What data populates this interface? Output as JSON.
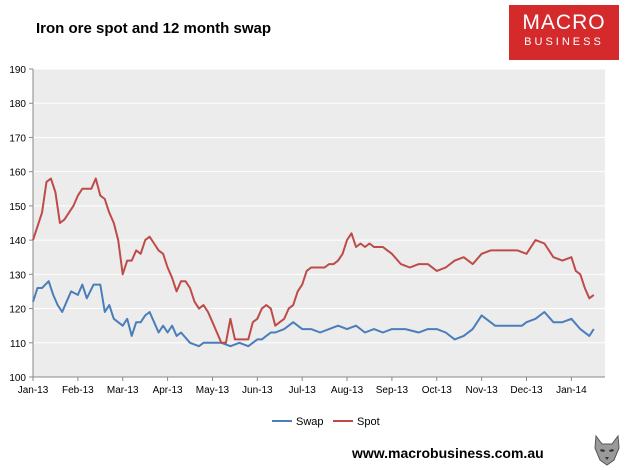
{
  "header": {
    "title": "Iron ore spot and 12 month swap"
  },
  "logo": {
    "line1": "MACRO",
    "line2": "BUSINESS",
    "color": "#d42a2c"
  },
  "footer": {
    "url": "www.macrobusiness.com.au"
  },
  "colors": {
    "swap": "#4a7ebb",
    "spot": "#be4b48",
    "plot_bg": "#ececec"
  },
  "chart_data": {
    "type": "line",
    "title": "Iron ore spot and 12 month swap",
    "xlabel": "",
    "ylabel": "",
    "ylim": [
      100,
      190
    ],
    "yticks": [
      100,
      110,
      120,
      130,
      140,
      150,
      160,
      170,
      180,
      190
    ],
    "xlim": [
      0,
      12.75
    ],
    "x_tick_labels": [
      "Jan-13",
      "Feb-13",
      "Mar-13",
      "Apr-13",
      "May-13",
      "Jun-13",
      "Jul-13",
      "Aug-13",
      "Sep-13",
      "Oct-13",
      "Nov-13",
      "Dec-13",
      "Jan-14"
    ],
    "legend_position": "bottom",
    "series": [
      {
        "name": "Swap",
        "color": "#4a7ebb",
        "x": [
          0,
          0.1,
          0.2,
          0.35,
          0.45,
          0.55,
          0.65,
          0.75,
          0.85,
          1.0,
          1.1,
          1.2,
          1.35,
          1.5,
          1.6,
          1.7,
          1.8,
          1.9,
          2.0,
          2.1,
          2.2,
          2.3,
          2.4,
          2.5,
          2.6,
          2.7,
          2.8,
          2.9,
          3.0,
          3.1,
          3.2,
          3.3,
          3.5,
          3.7,
          3.8,
          3.9,
          4.0,
          4.2,
          4.4,
          4.6,
          4.8,
          5.0,
          5.1,
          5.2,
          5.3,
          5.4,
          5.6,
          5.8,
          6.0,
          6.2,
          6.4,
          6.6,
          6.8,
          7.0,
          7.2,
          7.4,
          7.6,
          7.8,
          8.0,
          8.3,
          8.6,
          8.8,
          9.0,
          9.2,
          9.4,
          9.6,
          9.8,
          10.0,
          10.3,
          10.6,
          10.9,
          11.0,
          11.2,
          11.4,
          11.6,
          11.8,
          12.0,
          12.2,
          12.4,
          12.5
        ],
        "values": [
          122,
          126,
          126,
          128,
          124,
          121,
          119,
          122,
          125,
          124,
          127,
          123,
          127,
          127,
          119,
          121,
          117,
          116,
          115,
          117,
          112,
          116,
          116,
          118,
          119,
          116,
          113,
          115,
          113,
          115,
          112,
          113,
          110,
          109,
          110,
          110,
          110,
          110,
          109,
          110,
          109,
          111,
          111,
          112,
          113,
          113,
          114,
          116,
          114,
          114,
          113,
          114,
          115,
          114,
          115,
          113,
          114,
          113,
          114,
          114,
          113,
          114,
          114,
          113,
          111,
          112,
          114,
          118,
          115,
          115,
          115,
          116,
          117,
          119,
          116,
          116,
          117,
          114,
          112,
          114
        ]
      },
      {
        "name": "Spot",
        "color": "#be4b48",
        "x": [
          0,
          0.1,
          0.2,
          0.3,
          0.4,
          0.5,
          0.6,
          0.7,
          0.8,
          0.9,
          1.0,
          1.1,
          1.2,
          1.3,
          1.4,
          1.5,
          1.6,
          1.65,
          1.7,
          1.8,
          1.9,
          2.0,
          2.1,
          2.2,
          2.3,
          2.4,
          2.5,
          2.6,
          2.7,
          2.8,
          2.9,
          3.0,
          3.1,
          3.2,
          3.3,
          3.4,
          3.5,
          3.6,
          3.7,
          3.8,
          3.9,
          4.0,
          4.1,
          4.2,
          4.3,
          4.4,
          4.5,
          4.6,
          4.7,
          4.8,
          4.9,
          5.0,
          5.1,
          5.2,
          5.3,
          5.4,
          5.5,
          5.6,
          5.7,
          5.8,
          5.9,
          6.0,
          6.1,
          6.2,
          6.3,
          6.4,
          6.5,
          6.6,
          6.7,
          6.8,
          6.9,
          7.0,
          7.1,
          7.2,
          7.3,
          7.4,
          7.5,
          7.6,
          7.7,
          7.8,
          7.9,
          8.0,
          8.2,
          8.4,
          8.6,
          8.8,
          9.0,
          9.2,
          9.4,
          9.6,
          9.8,
          10.0,
          10.2,
          10.4,
          10.6,
          10.8,
          11.0,
          11.2,
          11.4,
          11.6,
          11.8,
          12.0,
          12.1,
          12.2,
          12.3,
          12.4,
          12.5
        ],
        "values": [
          140,
          144,
          148,
          157,
          158,
          154,
          145,
          146,
          148,
          150,
          153,
          155,
          155,
          155,
          158,
          153,
          152,
          150,
          148,
          145,
          140,
          130,
          134,
          134,
          137,
          136,
          140,
          141,
          139,
          137,
          136,
          132,
          129,
          125,
          128,
          128,
          126,
          122,
          120,
          121,
          119,
          116,
          113,
          110,
          110,
          117,
          111,
          111,
          111,
          111,
          116,
          117,
          120,
          121,
          120,
          115,
          116,
          117,
          120,
          121,
          125,
          127,
          131,
          132,
          132,
          132,
          132,
          133,
          133,
          134,
          136,
          140,
          142,
          138,
          139,
          138,
          139,
          138,
          138,
          138,
          137,
          136,
          133,
          132,
          133,
          133,
          131,
          132,
          134,
          135,
          133,
          136,
          137,
          137,
          137,
          137,
          136,
          140,
          139,
          135,
          134,
          135,
          131,
          130,
          126,
          123,
          124
        ]
      }
    ]
  }
}
